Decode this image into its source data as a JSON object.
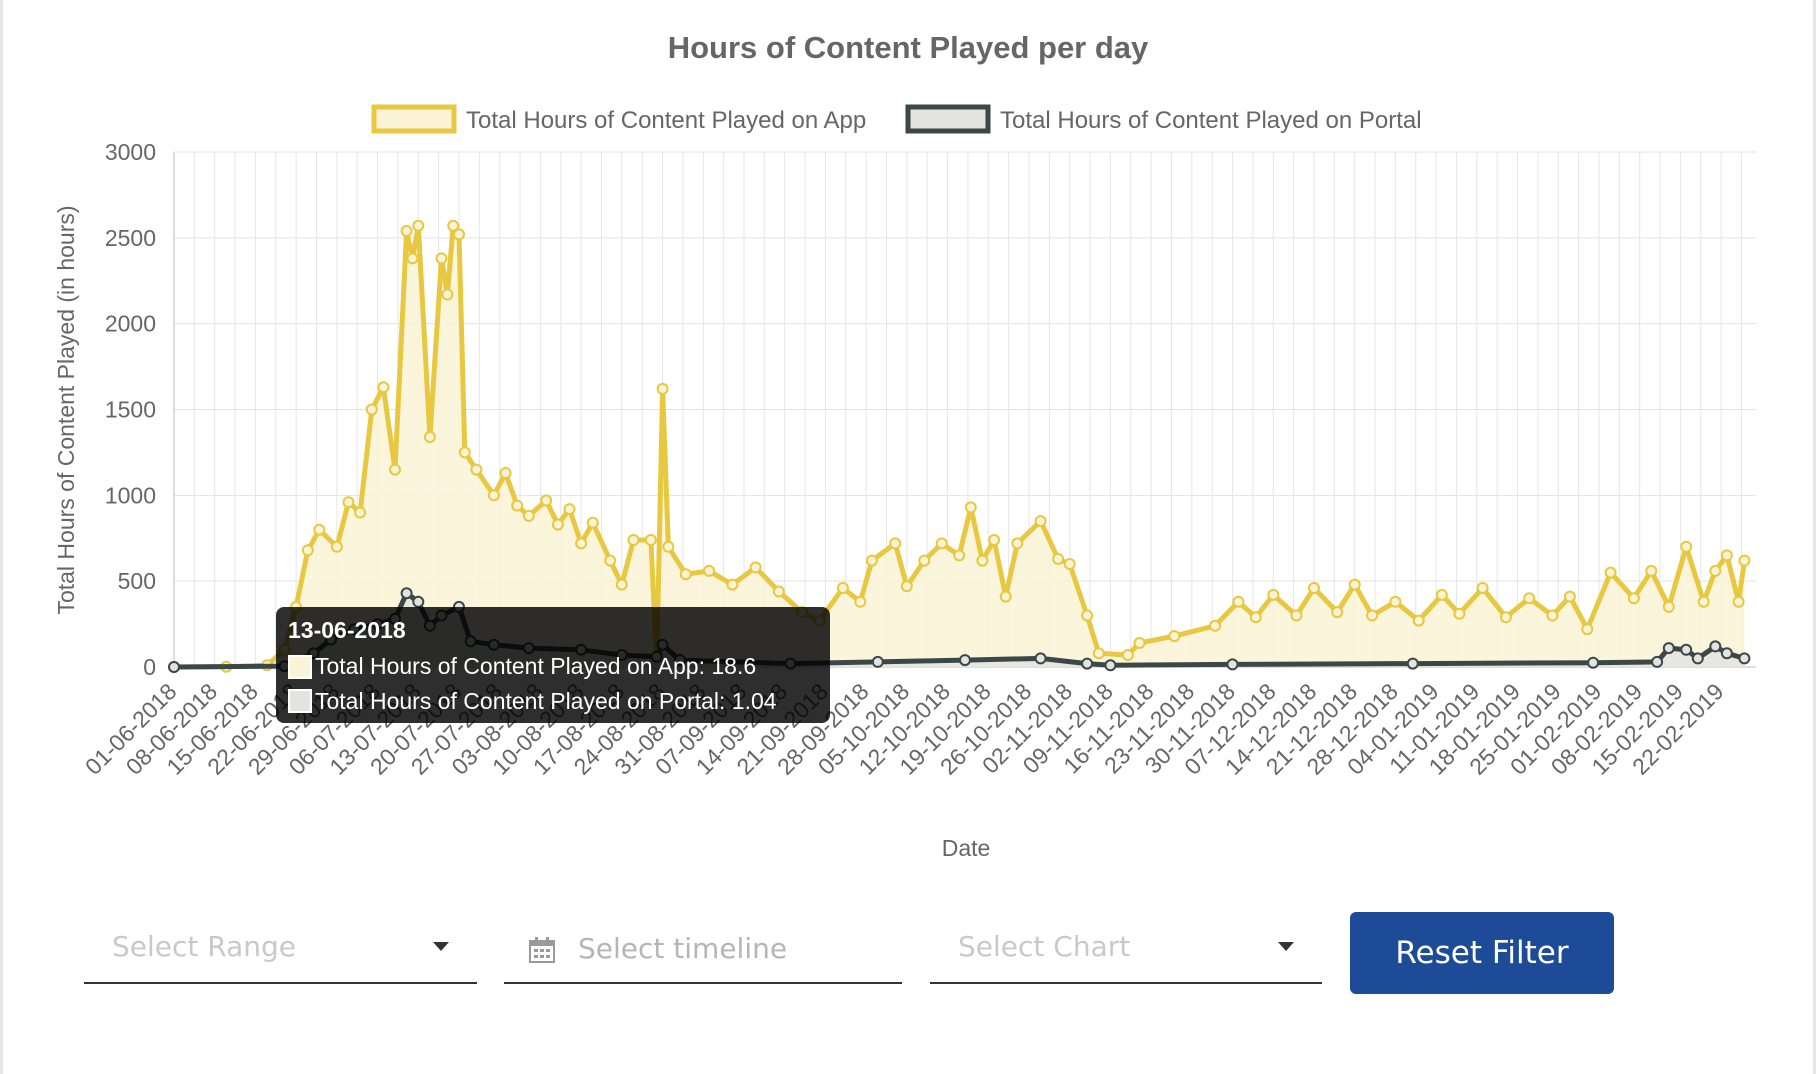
{
  "chart_data": {
    "type": "area",
    "title": "Hours of Content Played per day",
    "xlabel": "Date",
    "ylabel": "Total Hours of Content Played (in hours)",
    "ylim": [
      0,
      3000
    ],
    "y_ticks": [
      "0",
      "500",
      "1000",
      "1500",
      "2000",
      "2500",
      "3000"
    ],
    "x_range": [
      "01-06-2018",
      "28-02-2019"
    ],
    "x_tick_labels": [
      "01-06-2018",
      "08-06-2018",
      "15-06-2018",
      "22-06-2018",
      "29-06-2018",
      "06-07-2018",
      "13-07-2018",
      "20-07-2018",
      "27-07-2018",
      "03-08-2018",
      "10-08-2018",
      "17-08-2018",
      "24-08-2018",
      "31-08-2018",
      "07-09-2018",
      "14-09-2018",
      "21-09-2018",
      "28-09-2018",
      "05-10-2018",
      "12-10-2018",
      "19-10-2018",
      "26-10-2018",
      "02-11-2018",
      "09-11-2018",
      "16-11-2018",
      "23-11-2018",
      "30-11-2018",
      "07-12-2018",
      "14-12-2018",
      "21-12-2018",
      "28-12-2018",
      "04-01-2019",
      "11-01-2019",
      "18-01-2019",
      "25-01-2019",
      "01-02-2019",
      "08-02-2019",
      "15-02-2019",
      "22-02-2019"
    ],
    "grid": true,
    "legend_position": "top",
    "series": [
      {
        "name": "Total Hours of Content Played on App",
        "color": "#e8c840",
        "fill": "#faf3d6",
        "points": [
          [
            "01-06-2018",
            0
          ],
          [
            "10-06-2018",
            2
          ],
          [
            "17-06-2018",
            10
          ],
          [
            "20-06-2018",
            100
          ],
          [
            "22-06-2018",
            350
          ],
          [
            "24-06-2018",
            680
          ],
          [
            "26-06-2018",
            800
          ],
          [
            "29-06-2018",
            700
          ],
          [
            "01-07-2018",
            960
          ],
          [
            "03-07-2018",
            900
          ],
          [
            "05-07-2018",
            1500
          ],
          [
            "07-07-2018",
            1630
          ],
          [
            "09-07-2018",
            1150
          ],
          [
            "11-07-2018",
            2540
          ],
          [
            "12-07-2018",
            2380
          ],
          [
            "13-07-2018",
            2570
          ],
          [
            "15-07-2018",
            1340
          ],
          [
            "17-07-2018",
            2380
          ],
          [
            "18-07-2018",
            2170
          ],
          [
            "19-07-2018",
            2570
          ],
          [
            "20-07-2018",
            2520
          ],
          [
            "21-07-2018",
            1250
          ],
          [
            "23-07-2018",
            1150
          ],
          [
            "26-07-2018",
            1000
          ],
          [
            "28-07-2018",
            1130
          ],
          [
            "30-07-2018",
            940
          ],
          [
            "01-08-2018",
            880
          ],
          [
            "04-08-2018",
            970
          ],
          [
            "06-08-2018",
            830
          ],
          [
            "08-08-2018",
            920
          ],
          [
            "10-08-2018",
            720
          ],
          [
            "12-08-2018",
            840
          ],
          [
            "15-08-2018",
            620
          ],
          [
            "17-08-2018",
            480
          ],
          [
            "19-08-2018",
            740
          ],
          [
            "22-08-2018",
            740
          ],
          [
            "23-08-2018",
            20
          ],
          [
            "24-08-2018",
            1620
          ],
          [
            "25-08-2018",
            700
          ],
          [
            "28-08-2018",
            540
          ],
          [
            "01-09-2018",
            560
          ],
          [
            "05-09-2018",
            480
          ],
          [
            "09-09-2018",
            580
          ],
          [
            "13-09-2018",
            440
          ],
          [
            "17-09-2018",
            320
          ],
          [
            "20-09-2018",
            270
          ],
          [
            "24-09-2018",
            460
          ],
          [
            "27-09-2018",
            380
          ],
          [
            "29-09-2018",
            620
          ],
          [
            "03-10-2018",
            720
          ],
          [
            "05-10-2018",
            470
          ],
          [
            "08-10-2018",
            620
          ],
          [
            "11-10-2018",
            720
          ],
          [
            "14-10-2018",
            650
          ],
          [
            "16-10-2018",
            930
          ],
          [
            "18-10-2018",
            620
          ],
          [
            "20-10-2018",
            740
          ],
          [
            "22-10-2018",
            410
          ],
          [
            "24-10-2018",
            720
          ],
          [
            "28-10-2018",
            850
          ],
          [
            "31-10-2018",
            630
          ],
          [
            "02-11-2018",
            600
          ],
          [
            "05-11-2018",
            300
          ],
          [
            "07-11-2018",
            80
          ],
          [
            "12-11-2018",
            70
          ],
          [
            "14-11-2018",
            140
          ],
          [
            "20-11-2018",
            180
          ],
          [
            "27-11-2018",
            240
          ],
          [
            "01-12-2018",
            380
          ],
          [
            "04-12-2018",
            290
          ],
          [
            "07-12-2018",
            420
          ],
          [
            "11-12-2018",
            300
          ],
          [
            "14-12-2018",
            460
          ],
          [
            "18-12-2018",
            320
          ],
          [
            "21-12-2018",
            480
          ],
          [
            "24-12-2018",
            300
          ],
          [
            "28-12-2018",
            380
          ],
          [
            "01-01-2019",
            270
          ],
          [
            "05-01-2019",
            420
          ],
          [
            "08-01-2019",
            310
          ],
          [
            "12-01-2019",
            460
          ],
          [
            "16-01-2019",
            290
          ],
          [
            "20-01-2019",
            400
          ],
          [
            "24-01-2019",
            300
          ],
          [
            "27-01-2019",
            410
          ],
          [
            "30-01-2019",
            220
          ],
          [
            "03-02-2019",
            550
          ],
          [
            "07-02-2019",
            400
          ],
          [
            "10-02-2019",
            560
          ],
          [
            "13-02-2019",
            350
          ],
          [
            "16-02-2019",
            700
          ],
          [
            "19-02-2019",
            380
          ],
          [
            "21-02-2019",
            560
          ],
          [
            "23-02-2019",
            650
          ],
          [
            "25-02-2019",
            380
          ],
          [
            "26-02-2019",
            620
          ]
        ]
      },
      {
        "name": "Total Hours of Content Played on Portal",
        "color": "#3a4848",
        "fill": "#e3e3e0",
        "points": [
          [
            "01-06-2018",
            0
          ],
          [
            "20-06-2018",
            5
          ],
          [
            "25-06-2018",
            80
          ],
          [
            "28-06-2018",
            160
          ],
          [
            "02-07-2018",
            220
          ],
          [
            "06-07-2018",
            250
          ],
          [
            "09-07-2018",
            280
          ],
          [
            "11-07-2018",
            430
          ],
          [
            "13-07-2018",
            380
          ],
          [
            "15-07-2018",
            240
          ],
          [
            "17-07-2018",
            300
          ],
          [
            "20-07-2018",
            350
          ],
          [
            "22-07-2018",
            150
          ],
          [
            "26-07-2018",
            130
          ],
          [
            "01-08-2018",
            110
          ],
          [
            "10-08-2018",
            100
          ],
          [
            "17-08-2018",
            70
          ],
          [
            "23-08-2018",
            60
          ],
          [
            "24-08-2018",
            130
          ],
          [
            "27-08-2018",
            40
          ],
          [
            "15-09-2018",
            20
          ],
          [
            "30-09-2018",
            30
          ],
          [
            "15-10-2018",
            40
          ],
          [
            "28-10-2018",
            50
          ],
          [
            "05-11-2018",
            20
          ],
          [
            "09-11-2018",
            10
          ],
          [
            "30-11-2018",
            15
          ],
          [
            "31-12-2018",
            20
          ],
          [
            "31-01-2019",
            25
          ],
          [
            "11-02-2019",
            30
          ],
          [
            "13-02-2019",
            110
          ],
          [
            "16-02-2019",
            100
          ],
          [
            "18-02-2019",
            50
          ],
          [
            "21-02-2019",
            120
          ],
          [
            "23-02-2019",
            80
          ],
          [
            "26-02-2019",
            50
          ]
        ]
      }
    ],
    "tooltip": {
      "title": "13-06-2018",
      "lines": [
        "Total Hours of Content Played on App: 18.6",
        "Total Hours of Content Played on Portal: 1.04"
      ]
    }
  },
  "filters": {
    "range_placeholder": "Select Range",
    "timeline_placeholder": "Select timeline",
    "chart_placeholder": "Select Chart",
    "reset_label": "Reset Filter"
  }
}
